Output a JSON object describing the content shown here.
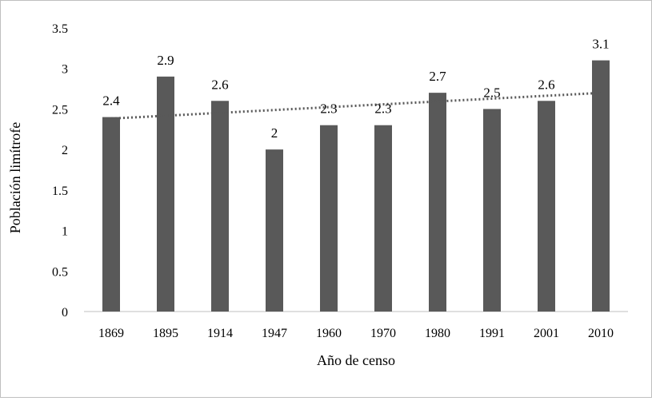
{
  "chart_data": {
    "type": "bar",
    "title": "",
    "xlabel": "Año de censo",
    "ylabel": "Población limítrofe",
    "categories": [
      "1869",
      "1895",
      "1914",
      "1947",
      "1960",
      "1970",
      "1980",
      "1991",
      "2001",
      "2010"
    ],
    "values": [
      2.4,
      2.9,
      2.6,
      2.0,
      2.3,
      2.3,
      2.7,
      2.5,
      2.6,
      3.1
    ],
    "data_labels": [
      "2.4",
      "2.9",
      "2.6",
      "2",
      "2.3",
      "2.3",
      "2.7",
      "2.5",
      "2.6",
      "3.1"
    ],
    "ylim": [
      0,
      3.5
    ],
    "yticks": [
      "0",
      "0.5",
      "1",
      "1.5",
      "2",
      "2.5",
      "3",
      "3.5"
    ],
    "trendline": {
      "type": "linear",
      "style": "dotted"
    },
    "grid": false,
    "legend": "none",
    "colors": {
      "bar": "#595959",
      "trendline": "#595959",
      "axis": "#bfbfbf"
    }
  }
}
